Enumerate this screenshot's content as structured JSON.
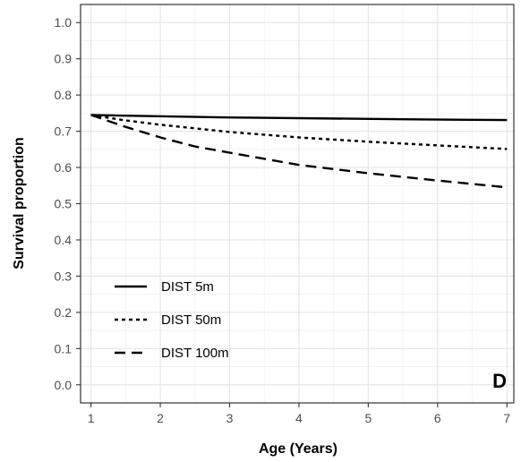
{
  "chart_data": {
    "type": "line",
    "xlabel": "Age (Years)",
    "ylabel": "Survival proportion",
    "panel_label": "D",
    "xlim": [
      0.85,
      7.1
    ],
    "ylim": [
      -0.05,
      1.05
    ],
    "x_ticks": [
      1,
      2,
      3,
      4,
      5,
      6,
      7
    ],
    "y_ticks": [
      0.0,
      0.1,
      0.2,
      0.3,
      0.4,
      0.5,
      0.6,
      0.7,
      0.8,
      0.9,
      1.0
    ],
    "y_tick_labels": [
      "0.0",
      "0.1",
      "0.2",
      "0.3",
      "0.4",
      "0.5",
      "0.6",
      "0.7",
      "0.8",
      "0.9",
      "1.0"
    ],
    "grid": true,
    "legend_position": "bottom-left",
    "series": [
      {
        "name": "DIST 5m",
        "line_style": "solid",
        "x": [
          1.0,
          1.5,
          3.0,
          5.5,
          7.0
        ],
        "y": [
          0.745,
          0.743,
          0.738,
          0.733,
          0.731
        ]
      },
      {
        "name": "DIST 50m",
        "line_style": "dotted",
        "x": [
          1.0,
          1.5,
          2.0,
          3.0,
          4.0,
          5.0,
          6.0,
          7.0
        ],
        "y": [
          0.745,
          0.73,
          0.718,
          0.698,
          0.683,
          0.671,
          0.661,
          0.651
        ]
      },
      {
        "name": "DIST 100m",
        "line_style": "dashed",
        "x": [
          1.0,
          1.5,
          2.0,
          2.5,
          3.0,
          4.0,
          5.0,
          6.0,
          7.0
        ],
        "y": [
          0.745,
          0.712,
          0.683,
          0.658,
          0.641,
          0.607,
          0.584,
          0.564,
          0.545
        ]
      }
    ]
  }
}
